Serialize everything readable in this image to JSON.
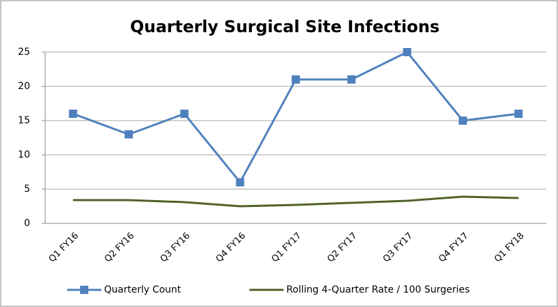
{
  "chart_data": {
    "type": "line",
    "title": "Quarterly Surgical Site Infections",
    "categories": [
      "Q1 FY16",
      "Q2 FY16",
      "Q3 FY16",
      "Q4 FY16",
      "Q1 FY17",
      "Q2 FY17",
      "Q3 FY17",
      "Q4 FY17",
      "Q1 FY18"
    ],
    "series": [
      {
        "name": "Quarterly Count",
        "color": "#4f81bd",
        "marker": "square",
        "values": [
          16,
          13,
          16,
          6,
          21,
          21,
          25,
          15,
          16
        ]
      },
      {
        "name": "Rolling 4-Quarter Rate / 100 Surgeries",
        "color": "#4f6228",
        "values": [
          3.4,
          3.4,
          3.1,
          2.5,
          2.7,
          3.0,
          3.3,
          3.9,
          3.7
        ]
      }
    ],
    "ylim": [
      0,
      25
    ],
    "yticks": [
      0,
      5,
      10,
      15,
      20,
      25
    ],
    "grid": true,
    "legend": "bottom"
  }
}
